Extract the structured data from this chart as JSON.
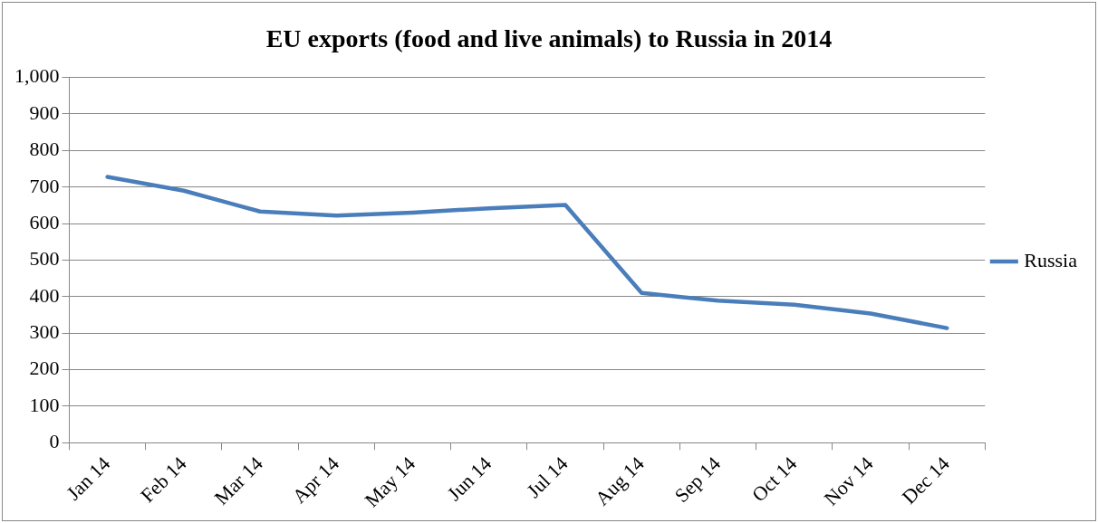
{
  "chart_data": {
    "type": "line",
    "title": "EU exports (food and live animals) to Russia in 2014",
    "categories": [
      "Jan 14",
      "Feb 14",
      "Mar 14",
      "Apr 14",
      "May 14",
      "Jun 14",
      "Jul 14",
      "Aug 14",
      "Sep 14",
      "Oct 14",
      "Nov 14",
      "Dec 14"
    ],
    "series": [
      {
        "name": "Russia",
        "color": "#4a7ebb",
        "values": [
          728,
          690,
          633,
          622,
          630,
          642,
          651,
          410,
          389,
          378,
          354,
          314
        ]
      }
    ],
    "ylim": [
      0,
      1000
    ],
    "yticks": [
      0,
      100,
      200,
      300,
      400,
      500,
      600,
      700,
      800,
      900,
      {
        "value": 1000,
        "label": "1,000"
      }
    ],
    "grid": "y",
    "legend": "right",
    "marker": "none",
    "line_style": "solid"
  }
}
